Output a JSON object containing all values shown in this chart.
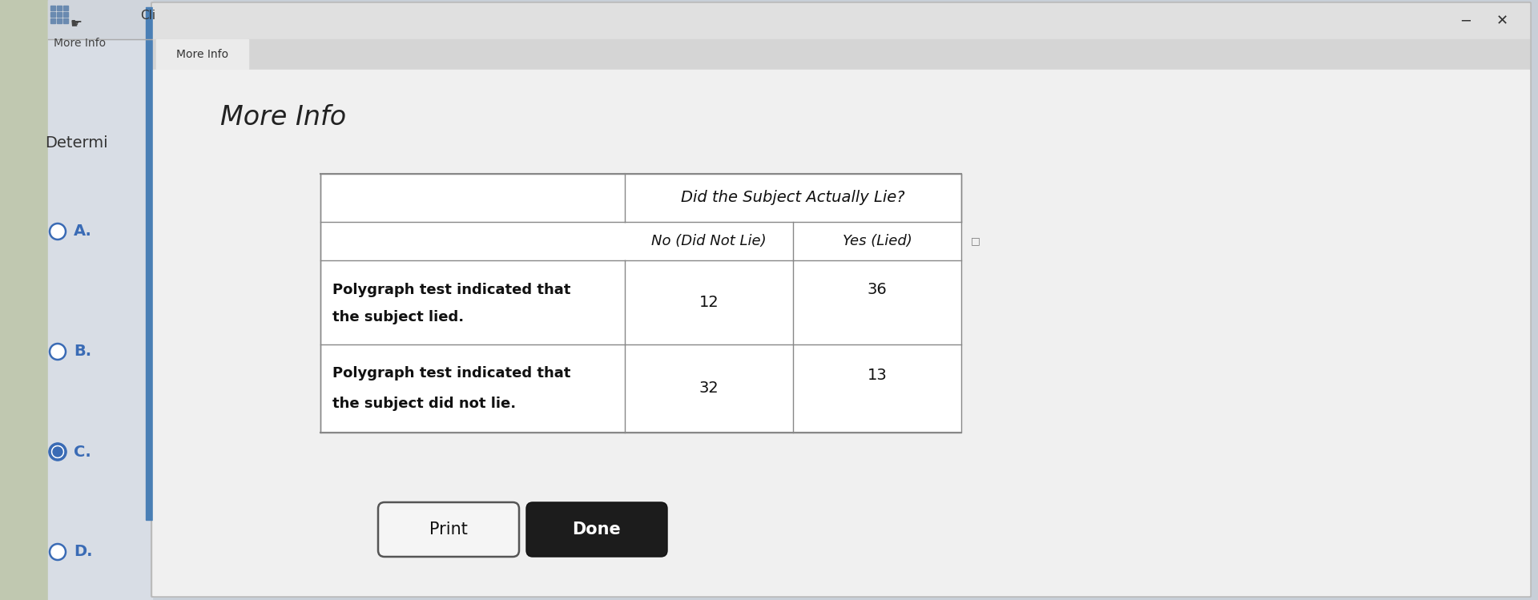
{
  "title": "More Info",
  "tab_label": "More Info",
  "window_title": "Cli",
  "col_header_top": "Did the Subject Actually Lie?",
  "col_header_left": "No (Did Not Lie)",
  "col_header_right": "Yes (Lied)",
  "row1_label_line1": "Polygraph test indicated that",
  "row1_label_line2": "the subject lied.",
  "row1_val1": "12",
  "row1_val2": "36",
  "row2_label_line1": "Polygraph test indicated that",
  "row2_label_line2": "the subject did not lie.",
  "row2_val1": "32",
  "row2_val2": "13",
  "bg_outer": "#c8cfd8",
  "bg_left_panel": "#d8dde5",
  "bg_dialog": "#eaeaea",
  "bg_inner": "#f2f2f2",
  "blue_bar_color": "#4a7fb5",
  "table_line_color": "#888888",
  "btn_print_bg": "#f5f5f5",
  "btn_done_bg": "#1c1c1c",
  "btn_done_text": "#ffffff",
  "btn_print_text": "#111111",
  "title_color": "#222222",
  "cell_text_color": "#111111",
  "radio_color": "#3a6bb5",
  "label_color": "#3a6bb5",
  "determi_color": "#333333",
  "title_fontsize": 24,
  "cell_fontsize": 13,
  "radio_selected": "C"
}
